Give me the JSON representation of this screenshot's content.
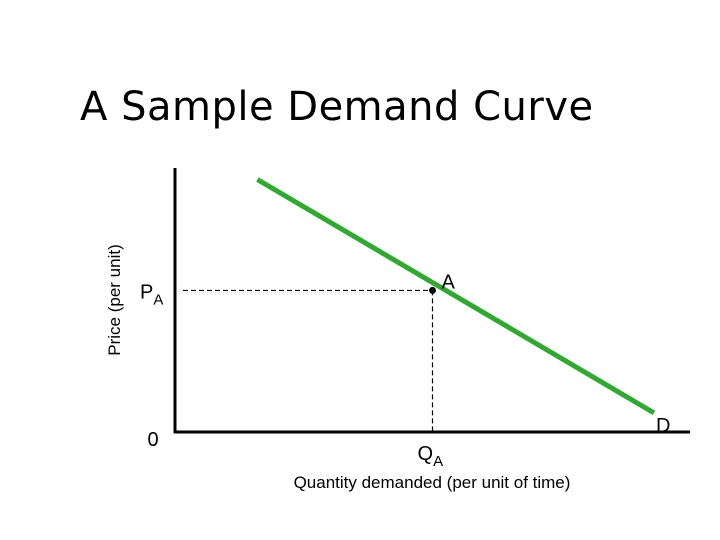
{
  "title": "A Sample Demand Curve",
  "chart_data": {
    "type": "line",
    "title": "A Sample Demand Curve",
    "xlabel": "Quantity demanded (per unit of time)",
    "ylabel": "Price (per unit)",
    "origin_label": "0",
    "series": [
      {
        "label": "D",
        "color": "#2eaa2e",
        "points": [
          [
            0.16,
            1.32
          ],
          [
            0.93,
            0.1
          ]
        ]
      }
    ],
    "point": {
      "label": "A",
      "x": 0.5,
      "y": 0.74
    },
    "x_marker": {
      "label": "Q",
      "subscript": "A"
    },
    "y_marker": {
      "label": "P",
      "subscript": "A"
    },
    "xlim": [
      0,
      1
    ],
    "ylim": [
      0,
      1.38
    ],
    "grid": false
  }
}
